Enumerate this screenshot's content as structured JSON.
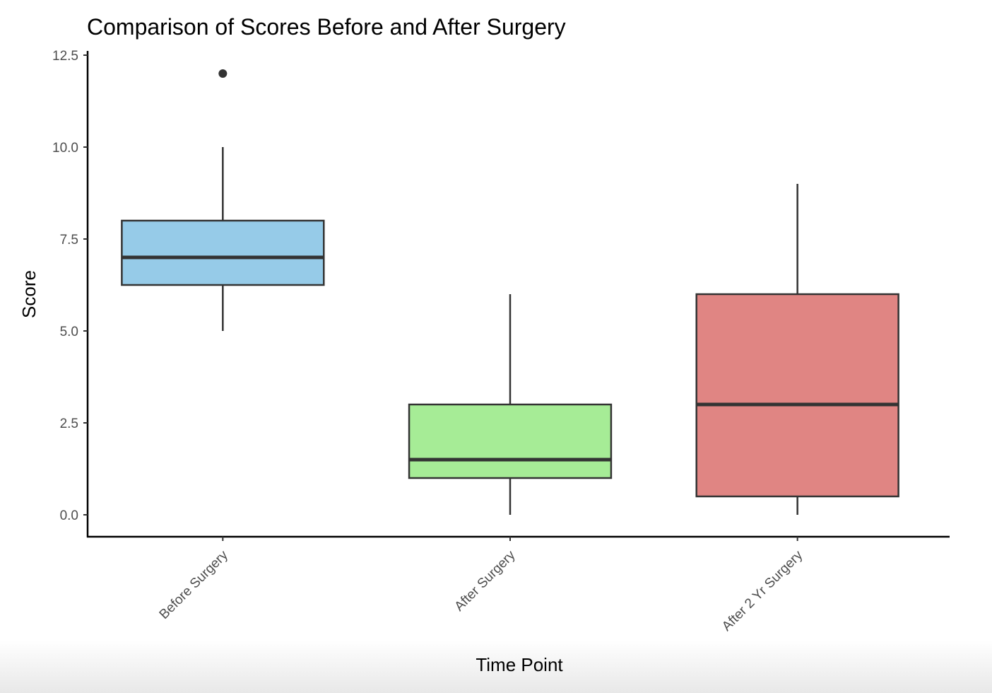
{
  "chart_data": {
    "type": "boxplot",
    "title": "Comparison of Scores Before and After Surgery",
    "xlabel": "Time Point",
    "ylabel": "Score",
    "ylim": [
      -0.6,
      12.6
    ],
    "y_ticks": [
      0.0,
      2.5,
      5.0,
      7.5,
      10.0,
      12.5
    ],
    "y_tick_labels": [
      "0.0",
      "2.5",
      "5.0",
      "7.5",
      "10.0",
      "12.5"
    ],
    "grid": false,
    "legend": "none",
    "categories": [
      "Before Surgery",
      "After Surgery",
      "After 2 Yr Surgery"
    ],
    "boxes": [
      {
        "category": "Before Surgery",
        "min": 5,
        "q1": 6.25,
        "median": 7,
        "q3": 8,
        "max": 10,
        "outliers": [
          12
        ],
        "color": "#96cbe8"
      },
      {
        "category": "After Surgery",
        "min": 0,
        "q1": 1,
        "median": 1.5,
        "q3": 3,
        "max": 6,
        "outliers": [],
        "color": "#a6ec96"
      },
      {
        "category": "After 2 Yr Surgery",
        "min": 0,
        "q1": 0.5,
        "median": 3,
        "q3": 6,
        "max": 9,
        "outliers": [],
        "color": "#e08583"
      }
    ]
  }
}
